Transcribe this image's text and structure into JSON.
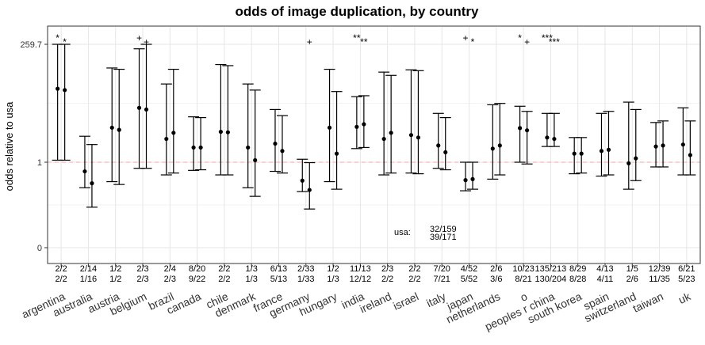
{
  "chart_data": {
    "type": "errorbar",
    "title": "odds of image duplication, by country",
    "xlabel": "",
    "ylabel": "odds relative to usa",
    "y_scale": "log",
    "y_ticks": [
      {
        "value": 0,
        "label": "0"
      },
      {
        "value": 1,
        "label": "1"
      },
      {
        "value": 259.7,
        "label": "259.7"
      }
    ],
    "reference_line": {
      "value": 1,
      "style": "dashed",
      "color": "#f4a6a6"
    },
    "annotation": {
      "label": "usa:",
      "counts": [
        "32/159",
        "39/171"
      ]
    },
    "grid": true,
    "colors": {
      "panel": "#ffffff",
      "grid_major": "#e6e6e6",
      "grid_minor": "#f2f2f2",
      "border": "#333333",
      "mark": "#000000",
      "title": "#000000"
    },
    "categories": [
      "argentina",
      "australia",
      "austria",
      "belgium",
      "brazil",
      "canada",
      "chile",
      "denmark",
      "france",
      "germany",
      "hungary",
      "india",
      "ireland",
      "israel",
      "italy",
      "japan",
      "netherlands",
      "o",
      "peoples r china",
      "south korea",
      "spain",
      "switzerland",
      "taiwan",
      "uk"
    ],
    "series": [
      {
        "estimate": [
          32.0,
          0.65,
          5.1,
          13.0,
          3.0,
          2.0,
          4.2,
          2.0,
          2.4,
          0.42,
          5.1,
          5.3,
          3.0,
          3.6,
          2.2,
          0.43,
          1.9,
          5.0,
          3.2,
          1.5,
          1.7,
          0.95,
          2.1,
          2.3
        ],
        "ci_low": [
          1.1,
          0.3,
          0.4,
          0.75,
          0.55,
          0.68,
          0.55,
          0.3,
          0.65,
          0.25,
          0.4,
          1.9,
          0.55,
          0.6,
          0.75,
          0.26,
          0.45,
          1.0,
          2.1,
          0.58,
          0.52,
          0.28,
          0.8,
          0.55
        ],
        "ci_high": [
          259.7,
          3.4,
          85.0,
          210.0,
          40.0,
          8.5,
          100.0,
          40.0,
          12.0,
          1.15,
          80.0,
          22.0,
          70.0,
          78.0,
          10.0,
          1.0,
          15.0,
          14.0,
          10.0,
          3.2,
          10.0,
          17.0,
          6.5,
          13.0
        ],
        "counts": [
          "2/2",
          "2/14",
          "1/2",
          "2/3",
          "2/4",
          "8/20",
          "2/2",
          "1/3",
          "6/13",
          "2/33",
          "1/2",
          "11/13",
          "2/3",
          "2/2",
          "7/20",
          "4/52",
          "2/6",
          "10/23",
          "135/213",
          "8/29",
          "4/13",
          "1/5",
          "12/39",
          "6/21"
        ],
        "markers": [
          "*",
          "",
          "",
          "+",
          "",
          "",
          "",
          "",
          "",
          "",
          "",
          "**",
          "",
          "",
          "",
          "+",
          "",
          "*",
          "***",
          "",
          "",
          "",
          "",
          ""
        ]
      },
      {
        "estimate": [
          30.0,
          0.37,
          4.6,
          12.0,
          4.0,
          2.0,
          4.1,
          1.1,
          1.7,
          0.27,
          1.5,
          6.0,
          4.0,
          3.2,
          1.6,
          0.45,
          2.2,
          4.5,
          3.0,
          1.5,
          1.8,
          1.2,
          2.2,
          1.4
        ],
        "ci_low": [
          1.1,
          0.12,
          0.35,
          0.75,
          0.6,
          0.7,
          0.55,
          0.2,
          0.6,
          0.11,
          0.28,
          2.0,
          0.6,
          0.58,
          0.7,
          0.28,
          0.55,
          0.92,
          2.1,
          0.6,
          0.55,
          0.42,
          0.8,
          0.55
        ],
        "ci_high": [
          259.7,
          2.3,
          80.0,
          259.7,
          80.0,
          8.2,
          95.0,
          30.0,
          9.0,
          0.98,
          28.0,
          23.0,
          60.0,
          75.0,
          8.2,
          1.0,
          16.0,
          11.0,
          10.0,
          3.2,
          11.0,
          12.0,
          7.0,
          7.0
        ],
        "counts": [
          "2/2",
          "1/16",
          "1/2",
          "2/3",
          "2/3",
          "9/22",
          "2/2",
          "1/3",
          "5/13",
          "1/33",
          "1/3",
          "12/12",
          "2/2",
          "2/2",
          "7/21",
          "5/52",
          "3/6",
          "8/21",
          "130/204",
          "8/28",
          "4/11",
          "2/6",
          "11/35",
          "5/23"
        ],
        "markers": [
          "*",
          "",
          "",
          "+",
          "",
          "",
          "",
          "",
          "",
          "+",
          "",
          "**",
          "",
          "",
          "",
          "*",
          "",
          "+",
          "***",
          "",
          "",
          "",
          "",
          ""
        ]
      }
    ]
  }
}
